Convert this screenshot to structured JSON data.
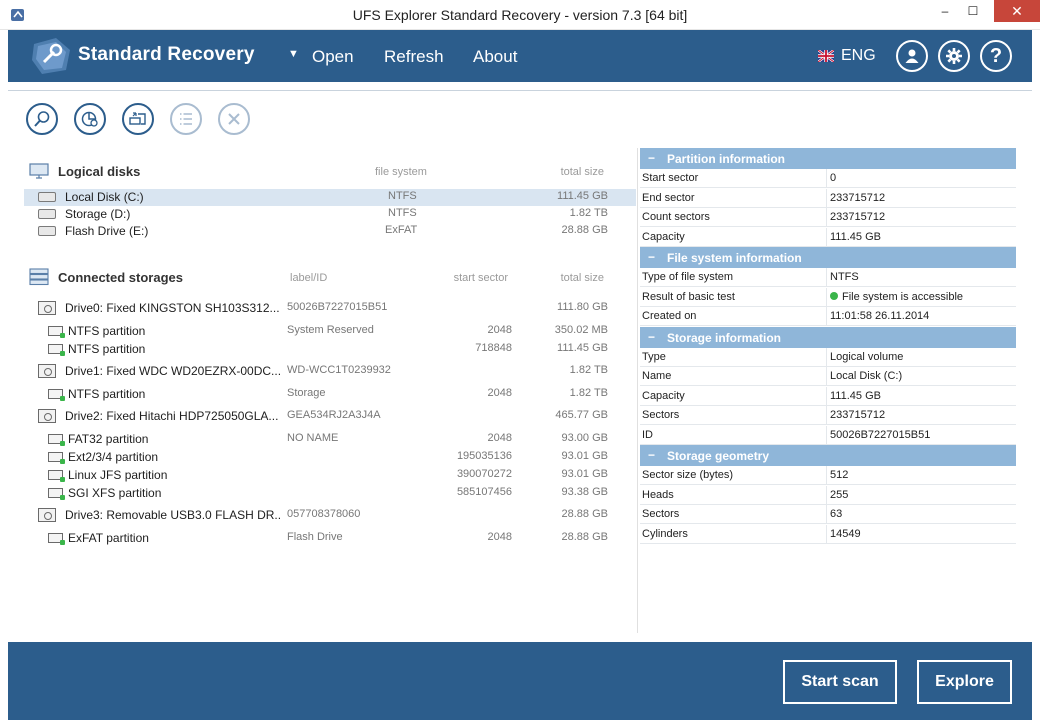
{
  "window": {
    "title": "UFS Explorer Standard Recovery - version 7.3 [64 bit]",
    "min": "–",
    "max": "☐",
    "close": "✕"
  },
  "header": {
    "brand": "Standard Recovery",
    "menu_arrow": "▼",
    "menu": {
      "open": "Open",
      "refresh": "Refresh",
      "about": "About"
    },
    "language": "ENG",
    "help": "?"
  },
  "logical_disks": {
    "title": "Logical disks",
    "col_fs": "file system",
    "col_size": "total size",
    "rows": [
      {
        "name": "Local Disk (C:)",
        "fs": "NTFS",
        "size": "111.45 GB"
      },
      {
        "name": "Storage (D:)",
        "fs": "NTFS",
        "size": "1.82 TB"
      },
      {
        "name": "Flash Drive (E:)",
        "fs": "ExFAT",
        "size": "28.88 GB"
      }
    ]
  },
  "connected_storages": {
    "title": "Connected storages",
    "col_label": "label/ID",
    "col_start": "start sector",
    "col_size": "total size",
    "rows": [
      {
        "name": "Drive0: Fixed KINGSTON SH103S312...",
        "label": "50026B7227015B51",
        "start": "",
        "size": "111.80 GB"
      },
      {
        "name": "NTFS partition",
        "label": "System Reserved",
        "start": "2048",
        "size": "350.02 MB"
      },
      {
        "name": "NTFS partition",
        "label": "",
        "start": "718848",
        "size": "111.45 GB"
      },
      {
        "name": "Drive1: Fixed WDC WD20EZRX-00DC...",
        "label": "WD-WCC1T0239932",
        "start": "",
        "size": "1.82 TB"
      },
      {
        "name": "NTFS partition",
        "label": "Storage",
        "start": "2048",
        "size": "1.82 TB"
      },
      {
        "name": "Drive2: Fixed Hitachi HDP725050GLA...",
        "label": "GEA534RJ2A3J4A",
        "start": "",
        "size": "465.77 GB"
      },
      {
        "name": "FAT32 partition",
        "label": "NO NAME",
        "start": "2048",
        "size": "93.00 GB"
      },
      {
        "name": "Ext2/3/4 partition",
        "label": "",
        "start": "195035136",
        "size": "93.01 GB"
      },
      {
        "name": "Linux JFS partition",
        "label": "",
        "start": "390070272",
        "size": "93.01 GB"
      },
      {
        "name": "SGI XFS partition",
        "label": "",
        "start": "585107456",
        "size": "93.38 GB"
      },
      {
        "name": "Drive3: Removable USB3.0 FLASH DR...",
        "label": "057708378060",
        "start": "",
        "size": "28.88 GB"
      },
      {
        "name": "ExFAT partition",
        "label": "Flash Drive",
        "start": "2048",
        "size": "28.88 GB"
      }
    ]
  },
  "info": {
    "partition": {
      "title": "Partition information",
      "rows": [
        {
          "k": "Start sector",
          "v": "0"
        },
        {
          "k": "End sector",
          "v": "233715712"
        },
        {
          "k": "Count sectors",
          "v": "233715712"
        },
        {
          "k": "Capacity",
          "v": "111.45 GB"
        }
      ]
    },
    "filesystem": {
      "title": "File system information",
      "rows": [
        {
          "k": "Type of file system",
          "v": "NTFS"
        },
        {
          "k": "Result of basic test",
          "v": "File system is accessible"
        },
        {
          "k": "Created on",
          "v": "11:01:58 26.11.2014"
        }
      ]
    },
    "storage": {
      "title": "Storage information",
      "rows": [
        {
          "k": "Type",
          "v": "Logical volume"
        },
        {
          "k": "Name",
          "v": "Local Disk (C:)"
        },
        {
          "k": "Capacity",
          "v": "111.45 GB"
        },
        {
          "k": "Sectors",
          "v": "233715712"
        },
        {
          "k": "ID",
          "v": "50026B7227015B51"
        }
      ]
    },
    "geometry": {
      "title": "Storage geometry",
      "rows": [
        {
          "k": "Sector size (bytes)",
          "v": "512"
        },
        {
          "k": "Heads",
          "v": "255"
        },
        {
          "k": "Sectors",
          "v": "63"
        },
        {
          "k": "Cylinders",
          "v": "14549"
        }
      ]
    },
    "collapse_symbol": "−"
  },
  "footer": {
    "start_scan": "Start scan",
    "explore": "Explore"
  },
  "colors": {
    "accent": "#2c5d8c",
    "section_header": "#8fb6d9",
    "selection": "#d9e5f1",
    "ok": "#3ab54a",
    "close": "#c7463a"
  }
}
